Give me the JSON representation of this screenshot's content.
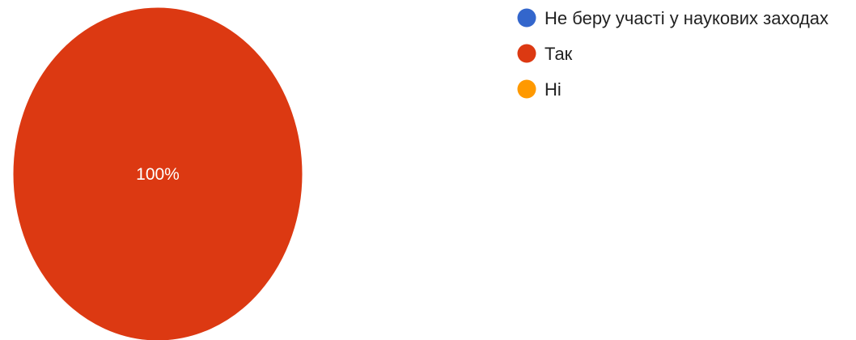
{
  "chart_data": {
    "type": "pie",
    "categories": [
      "Не беру участі у наукових заходах",
      "Так",
      "Ні"
    ],
    "values": [
      0,
      100,
      0
    ],
    "value_labels": [
      "",
      "100%",
      ""
    ],
    "colors": [
      "#3366CC",
      "#DC3912",
      "#FF9900"
    ],
    "legend_position": "right"
  }
}
